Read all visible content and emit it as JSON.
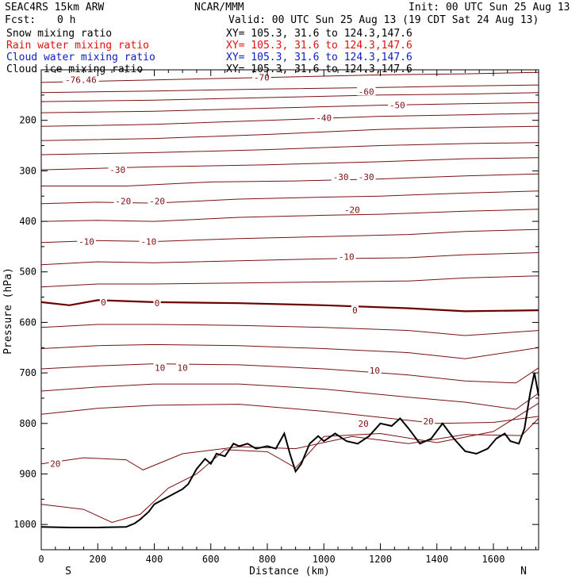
{
  "header": {
    "model": "SEAC4RS 15km ARW",
    "org": "NCAR/MMM",
    "init": "Init: 00 UTC Sun 25 Aug 13",
    "fcst_label": "Fcst:",
    "fcst_value": "0 h",
    "valid": "Valid: 00 UTC Sun 25 Aug 13 (19 CDT Sat 24 Aug 13)"
  },
  "fields": [
    {
      "name": "Snow mixing ratio",
      "xy": "XY= 105.3, 31.6 to 124.3,147.6",
      "color": "#000000"
    },
    {
      "name": "Rain water mixing ratio",
      "xy": "XY= 105.3, 31.6 to 124.3,147.6",
      "color": "#e01010"
    },
    {
      "name": "Cloud water mixing ratio",
      "xy": "XY= 105.3, 31.6 to 124.3,147.6",
      "color": "#1020c0"
    },
    {
      "name": "Cloud ice mixing ratio",
      "xy": "XY= 105.3, 31.6 to 124.3,147.6",
      "color": "#000000"
    }
  ],
  "colors": {
    "contour": "#7a1010",
    "zero_contour": "#6a0000",
    "terrain": "#000000",
    "grid": "#000000"
  },
  "chart_data": {
    "type": "line",
    "title": "",
    "xlabel": "Distance (km)",
    "ylabel": "Pressure (hPa)",
    "xlim": [
      0,
      1760
    ],
    "ylim": [
      1050,
      100
    ],
    "x_ticks": [
      "0",
      "200",
      "400",
      "600",
      "800",
      "1000",
      "1200",
      "1400",
      "1600"
    ],
    "x_tick_values": [
      0,
      200,
      400,
      600,
      800,
      1000,
      1200,
      1400,
      1600
    ],
    "y_ticks": [
      "200",
      "300",
      "400",
      "500",
      "600",
      "700",
      "800",
      "900",
      "1000"
    ],
    "y_tick_values": [
      200,
      300,
      400,
      500,
      600,
      700,
      800,
      900,
      1000
    ],
    "ends": {
      "left": "S",
      "right": "N"
    },
    "grid": false,
    "legend": "none",
    "isotherms": [
      {
        "points": [
          [
            0,
            125
          ],
          [
            400,
            120
          ],
          [
            800,
            115
          ],
          [
            1200,
            110
          ],
          [
            1500,
            108
          ],
          [
            1760,
            105
          ]
        ]
      },
      {
        "points": [
          [
            0,
            145
          ],
          [
            400,
            142
          ],
          [
            800,
            138
          ],
          [
            1200,
            135
          ],
          [
            1500,
            132
          ],
          [
            1760,
            130
          ]
        ]
      },
      {
        "points": [
          [
            0,
            163
          ],
          [
            400,
            160
          ],
          [
            800,
            155
          ],
          [
            1200,
            150
          ],
          [
            1500,
            148
          ],
          [
            1760,
            145
          ]
        ]
      },
      {
        "points": [
          [
            0,
            185
          ],
          [
            400,
            182
          ],
          [
            800,
            176
          ],
          [
            1200,
            170
          ],
          [
            1500,
            167
          ],
          [
            1760,
            165
          ]
        ]
      },
      {
        "points": [
          [
            0,
            212
          ],
          [
            400,
            208
          ],
          [
            800,
            200
          ],
          [
            1200,
            192
          ],
          [
            1500,
            189
          ],
          [
            1760,
            186
          ]
        ]
      },
      {
        "points": [
          [
            0,
            240
          ],
          [
            400,
            236
          ],
          [
            800,
            228
          ],
          [
            1200,
            218
          ],
          [
            1500,
            214
          ],
          [
            1760,
            212
          ]
        ]
      },
      {
        "points": [
          [
            0,
            268
          ],
          [
            400,
            264
          ],
          [
            800,
            258
          ],
          [
            1200,
            250
          ],
          [
            1500,
            246
          ],
          [
            1760,
            244
          ]
        ]
      },
      {
        "points": [
          [
            0,
            298
          ],
          [
            400,
            292
          ],
          [
            800,
            288
          ],
          [
            1200,
            282
          ],
          [
            1500,
            276
          ],
          [
            1760,
            274
          ]
        ]
      },
      {
        "points": [
          [
            0,
            330
          ],
          [
            300,
            330
          ],
          [
            600,
            322
          ],
          [
            900,
            320
          ],
          [
            1200,
            316
          ],
          [
            1500,
            310
          ],
          [
            1760,
            306
          ]
        ]
      },
      {
        "points": [
          [
            0,
            365
          ],
          [
            200,
            362
          ],
          [
            400,
            364
          ],
          [
            700,
            356
          ],
          [
            1000,
            352
          ],
          [
            1200,
            350
          ],
          [
            1500,
            344
          ],
          [
            1760,
            340
          ]
        ]
      },
      {
        "points": [
          [
            0,
            400
          ],
          [
            200,
            398
          ],
          [
            400,
            400
          ],
          [
            700,
            392
          ],
          [
            1000,
            388
          ],
          [
            1200,
            386
          ],
          [
            1500,
            380
          ],
          [
            1760,
            376
          ]
        ]
      },
      {
        "points": [
          [
            0,
            442
          ],
          [
            200,
            438
          ],
          [
            400,
            440
          ],
          [
            700,
            434
          ],
          [
            1000,
            430
          ],
          [
            1300,
            426
          ],
          [
            1500,
            420
          ],
          [
            1760,
            416
          ]
        ]
      },
      {
        "points": [
          [
            0,
            486
          ],
          [
            200,
            480
          ],
          [
            400,
            482
          ],
          [
            700,
            478
          ],
          [
            1000,
            474
          ],
          [
            1300,
            472
          ],
          [
            1500,
            466
          ],
          [
            1760,
            462
          ]
        ]
      },
      {
        "points": [
          [
            0,
            530
          ],
          [
            200,
            524
          ],
          [
            400,
            524
          ],
          [
            700,
            522
          ],
          [
            1000,
            520
          ],
          [
            1300,
            518
          ],
          [
            1500,
            512
          ],
          [
            1760,
            508
          ]
        ]
      },
      {
        "points": [
          [
            0,
            560
          ],
          [
            100,
            566
          ],
          [
            200,
            556
          ],
          [
            400,
            560
          ],
          [
            700,
            562
          ],
          [
            1000,
            566
          ],
          [
            1300,
            572
          ],
          [
            1500,
            578
          ],
          [
            1760,
            576
          ]
        ],
        "zero": true
      },
      {
        "points": [
          [
            0,
            610
          ],
          [
            200,
            604
          ],
          [
            400,
            604
          ],
          [
            700,
            606
          ],
          [
            1000,
            610
          ],
          [
            1300,
            616
          ],
          [
            1500,
            626
          ],
          [
            1760,
            616
          ]
        ]
      },
      {
        "points": [
          [
            0,
            652
          ],
          [
            200,
            646
          ],
          [
            400,
            644
          ],
          [
            700,
            646
          ],
          [
            1000,
            652
          ],
          [
            1300,
            660
          ],
          [
            1500,
            672
          ],
          [
            1760,
            650
          ]
        ]
      },
      {
        "points": [
          [
            0,
            692
          ],
          [
            200,
            686
          ],
          [
            400,
            682
          ],
          [
            700,
            684
          ],
          [
            1000,
            692
          ],
          [
            1300,
            704
          ],
          [
            1500,
            716
          ],
          [
            1680,
            720
          ],
          [
            1760,
            690
          ]
        ]
      },
      {
        "points": [
          [
            0,
            736
          ],
          [
            200,
            728
          ],
          [
            400,
            722
          ],
          [
            700,
            722
          ],
          [
            1000,
            732
          ],
          [
            1300,
            748
          ],
          [
            1500,
            758
          ],
          [
            1680,
            772
          ],
          [
            1760,
            740
          ]
        ]
      },
      {
        "points": [
          [
            0,
            782
          ],
          [
            200,
            770
          ],
          [
            400,
            764
          ],
          [
            700,
            762
          ],
          [
            1000,
            776
          ],
          [
            1200,
            788
          ],
          [
            1400,
            800
          ],
          [
            1600,
            798
          ],
          [
            1760,
            786
          ]
        ]
      },
      {
        "points": [
          [
            0,
            880
          ],
          [
            150,
            868
          ],
          [
            300,
            872
          ],
          [
            360,
            892
          ],
          [
            500,
            860
          ],
          [
            700,
            846
          ],
          [
            900,
            850
          ],
          [
            1100,
            826
          ],
          [
            1300,
            840
          ],
          [
            1500,
            822
          ],
          [
            1700,
            824
          ],
          [
            1760,
            790
          ]
        ]
      },
      {
        "points": [
          [
            0,
            960
          ],
          [
            150,
            970
          ],
          [
            250,
            996
          ],
          [
            350,
            980
          ],
          [
            450,
            928
          ],
          [
            550,
            900
          ],
          [
            650,
            852
          ],
          [
            800,
            856
          ],
          [
            900,
            888
          ],
          [
            1000,
            826
          ],
          [
            1200,
            820
          ],
          [
            1400,
            838
          ],
          [
            1600,
            816
          ],
          [
            1760,
            760
          ]
        ]
      }
    ],
    "contour_labels": [
      {
        "text": "-76.46",
        "x": 140,
        "p": 120
      },
      {
        "text": "-70",
        "x": 780,
        "p": 115
      },
      {
        "text": "-60",
        "x": 1150,
        "p": 143
      },
      {
        "text": "-50",
        "x": 1260,
        "p": 170
      },
      {
        "text": "-40",
        "x": 1000,
        "p": 195
      },
      {
        "text": "-30",
        "x": 270,
        "p": 298
      },
      {
        "text": "-30",
        "x": 1060,
        "p": 312
      },
      {
        "text": "-30",
        "x": 1150,
        "p": 312
      },
      {
        "text": "-20",
        "x": 290,
        "p": 360
      },
      {
        "text": "-20",
        "x": 410,
        "p": 360
      },
      {
        "text": "-20",
        "x": 1100,
        "p": 377
      },
      {
        "text": "-10",
        "x": 160,
        "p": 440
      },
      {
        "text": "-10",
        "x": 380,
        "p": 440
      },
      {
        "text": "-10",
        "x": 1080,
        "p": 470
      },
      {
        "text": "0",
        "x": 220,
        "p": 560
      },
      {
        "text": "0",
        "x": 410,
        "p": 562
      },
      {
        "text": "0",
        "x": 1110,
        "p": 576
      },
      {
        "text": "10",
        "x": 420,
        "p": 690
      },
      {
        "text": "10",
        "x": 500,
        "p": 690
      },
      {
        "text": "10",
        "x": 1180,
        "p": 695
      },
      {
        "text": "20",
        "x": 1140,
        "p": 800
      },
      {
        "text": "20",
        "x": 1370,
        "p": 796
      },
      {
        "text": "20",
        "x": 50,
        "p": 880
      }
    ],
    "terrain": [
      [
        0,
        1005
      ],
      [
        100,
        1006
      ],
      [
        200,
        1006
      ],
      [
        300,
        1005
      ],
      [
        330,
        998
      ],
      [
        350,
        990
      ],
      [
        380,
        975
      ],
      [
        400,
        960
      ],
      [
        450,
        945
      ],
      [
        500,
        930
      ],
      [
        520,
        920
      ],
      [
        550,
        890
      ],
      [
        580,
        870
      ],
      [
        600,
        880
      ],
      [
        620,
        860
      ],
      [
        650,
        865
      ],
      [
        680,
        840
      ],
      [
        700,
        845
      ],
      [
        730,
        840
      ],
      [
        760,
        850
      ],
      [
        800,
        845
      ],
      [
        830,
        850
      ],
      [
        860,
        820
      ],
      [
        880,
        860
      ],
      [
        900,
        895
      ],
      [
        920,
        880
      ],
      [
        950,
        840
      ],
      [
        980,
        825
      ],
      [
        1000,
        835
      ],
      [
        1040,
        820
      ],
      [
        1080,
        835
      ],
      [
        1120,
        840
      ],
      [
        1160,
        825
      ],
      [
        1200,
        800
      ],
      [
        1240,
        805
      ],
      [
        1270,
        790
      ],
      [
        1300,
        810
      ],
      [
        1340,
        840
      ],
      [
        1380,
        830
      ],
      [
        1420,
        800
      ],
      [
        1460,
        830
      ],
      [
        1500,
        855
      ],
      [
        1540,
        860
      ],
      [
        1580,
        850
      ],
      [
        1610,
        830
      ],
      [
        1640,
        820
      ],
      [
        1660,
        835
      ],
      [
        1690,
        840
      ],
      [
        1710,
        810
      ],
      [
        1730,
        740
      ],
      [
        1745,
        700
      ],
      [
        1760,
        745
      ]
    ]
  }
}
